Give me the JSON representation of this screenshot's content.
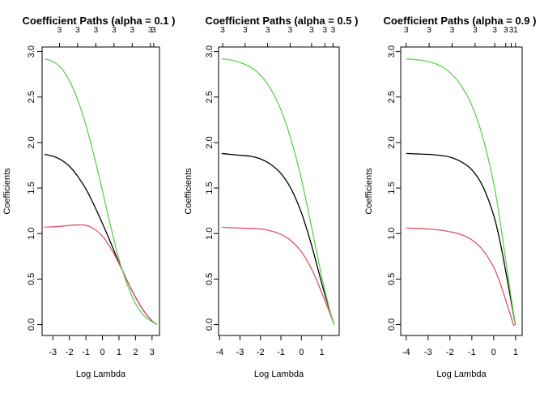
{
  "chart_data": [
    {
      "type": "line",
      "title": "Coefficient Paths (alpha = 0.1 )",
      "xlabel": "Log Lambda",
      "ylabel": "Coefficients",
      "xlim": [
        -3.65,
        3.45
      ],
      "ylim": [
        -0.12,
        3.05
      ],
      "xticks": [
        -3,
        -2,
        -1,
        0,
        1,
        2,
        3
      ],
      "yticks": [
        0.0,
        0.5,
        1.0,
        1.5,
        2.0,
        2.5,
        3.0
      ],
      "top_axis_labels": [
        "3",
        "3",
        "3",
        "3",
        "3",
        "3",
        "3"
      ],
      "top_axis_positions": [
        -2.6,
        -1.5,
        -0.4,
        0.7,
        1.8,
        2.9,
        3.1
      ],
      "series": [
        {
          "color": "#000000",
          "x": [
            -3.5,
            -3.0,
            -2.5,
            -2.0,
            -1.5,
            -1.0,
            -0.5,
            0.0,
            0.5,
            1.0,
            1.5,
            2.0,
            2.5,
            3.0,
            3.3
          ],
          "y": [
            1.87,
            1.85,
            1.81,
            1.74,
            1.63,
            1.49,
            1.31,
            1.11,
            0.9,
            0.68,
            0.48,
            0.3,
            0.15,
            0.04,
            0.0
          ]
        },
        {
          "color": "#DF536B",
          "x": [
            -3.5,
            -3.0,
            -2.5,
            -2.0,
            -1.5,
            -1.0,
            -0.5,
            0.0,
            0.5,
            1.0,
            1.5,
            2.0,
            2.5,
            3.0,
            3.3
          ],
          "y": [
            1.07,
            1.075,
            1.08,
            1.09,
            1.095,
            1.09,
            1.05,
            0.97,
            0.84,
            0.67,
            0.48,
            0.3,
            0.15,
            0.04,
            0.0
          ]
        },
        {
          "color": "#61D04F",
          "x": [
            -3.5,
            -3.0,
            -2.5,
            -2.0,
            -1.5,
            -1.0,
            -0.5,
            0.0,
            0.5,
            1.0,
            1.5,
            2.0,
            2.5,
            3.0,
            3.3
          ],
          "y": [
            2.92,
            2.89,
            2.82,
            2.68,
            2.47,
            2.19,
            1.85,
            1.47,
            1.08,
            0.72,
            0.44,
            0.23,
            0.1,
            0.03,
            0.0
          ]
        }
      ]
    },
    {
      "type": "line",
      "title": "Coefficient Paths (alpha = 0.5 )",
      "xlabel": "Log Lambda",
      "ylabel": "Coefficients",
      "xlim": [
        -4.05,
        1.85
      ],
      "ylim": [
        -0.12,
        3.05
      ],
      "xticks": [
        -4,
        -3,
        -2,
        -1,
        0,
        1
      ],
      "yticks": [
        0.0,
        0.5,
        1.0,
        1.5,
        2.0,
        2.5,
        3.0
      ],
      "top_axis_labels": [
        "3",
        "3",
        "3",
        "3",
        "3",
        "3",
        "3"
      ],
      "top_axis_positions": [
        -3.85,
        -2.75,
        -1.65,
        -0.55,
        0.5,
        1.15,
        1.55
      ],
      "series": [
        {
          "color": "#000000",
          "x": [
            -3.9,
            -3.5,
            -3.0,
            -2.5,
            -2.0,
            -1.5,
            -1.0,
            -0.5,
            0.0,
            0.5,
            1.0,
            1.3,
            1.5,
            1.6
          ],
          "y": [
            1.88,
            1.87,
            1.86,
            1.85,
            1.82,
            1.76,
            1.66,
            1.49,
            1.23,
            0.87,
            0.45,
            0.22,
            0.07,
            0.0
          ]
        },
        {
          "color": "#DF536B",
          "x": [
            -3.9,
            -3.5,
            -3.0,
            -2.5,
            -2.0,
            -1.5,
            -1.0,
            -0.5,
            0.0,
            0.5,
            1.0,
            1.3,
            1.5,
            1.6
          ],
          "y": [
            1.07,
            1.065,
            1.06,
            1.055,
            1.05,
            1.03,
            0.99,
            0.92,
            0.8,
            0.61,
            0.35,
            0.18,
            0.06,
            0.0
          ]
        },
        {
          "color": "#61D04F",
          "x": [
            -3.9,
            -3.5,
            -3.0,
            -2.5,
            -2.0,
            -1.5,
            -1.0,
            -0.5,
            0.0,
            0.5,
            1.0,
            1.3,
            1.5,
            1.6
          ],
          "y": [
            2.92,
            2.91,
            2.88,
            2.83,
            2.74,
            2.59,
            2.36,
            2.03,
            1.6,
            1.07,
            0.52,
            0.24,
            0.07,
            0.0
          ]
        }
      ]
    },
    {
      "type": "line",
      "title": "Coefficient Paths (alpha = 0.9 )",
      "xlabel": "Log Lambda",
      "ylabel": "Coefficients",
      "xlim": [
        -4.25,
        1.3
      ],
      "ylim": [
        -0.12,
        3.05
      ],
      "xticks": [
        -4,
        -3,
        -2,
        -1,
        0,
        1
      ],
      "yticks": [
        0.0,
        0.5,
        1.0,
        1.5,
        2.0,
        2.5,
        3.0
      ],
      "top_axis_labels": [
        "3",
        "3",
        "3",
        "3",
        "3",
        "3",
        "3",
        "1"
      ],
      "top_axis_positions": [
        -4.0,
        -2.95,
        -1.9,
        -0.85,
        0.05,
        0.55,
        0.8,
        1.0
      ],
      "series": [
        {
          "color": "#000000",
          "x": [
            -4.0,
            -3.5,
            -3.0,
            -2.5,
            -2.0,
            -1.5,
            -1.0,
            -0.5,
            0.0,
            0.3,
            0.6,
            0.8,
            0.95,
            1.0
          ],
          "y": [
            1.88,
            1.875,
            1.87,
            1.86,
            1.84,
            1.79,
            1.7,
            1.52,
            1.2,
            0.9,
            0.52,
            0.25,
            0.05,
            0.0
          ]
        },
        {
          "color": "#DF536B",
          "x": [
            -4.0,
            -3.5,
            -3.0,
            -2.5,
            -2.0,
            -1.5,
            -1.0,
            -0.5,
            0.0,
            0.3,
            0.6,
            0.8,
            0.9,
            1.0
          ],
          "y": [
            1.06,
            1.055,
            1.05,
            1.04,
            1.02,
            0.99,
            0.93,
            0.82,
            0.63,
            0.45,
            0.23,
            0.08,
            0.0,
            0.0
          ]
        },
        {
          "color": "#61D04F",
          "x": [
            -4.0,
            -3.5,
            -3.0,
            -2.5,
            -2.0,
            -1.5,
            -1.0,
            -0.5,
            0.0,
            0.3,
            0.6,
            0.8,
            0.95,
            1.0
          ],
          "y": [
            2.92,
            2.91,
            2.89,
            2.85,
            2.77,
            2.63,
            2.41,
            2.06,
            1.55,
            1.12,
            0.62,
            0.29,
            0.06,
            0.0
          ]
        }
      ]
    }
  ]
}
